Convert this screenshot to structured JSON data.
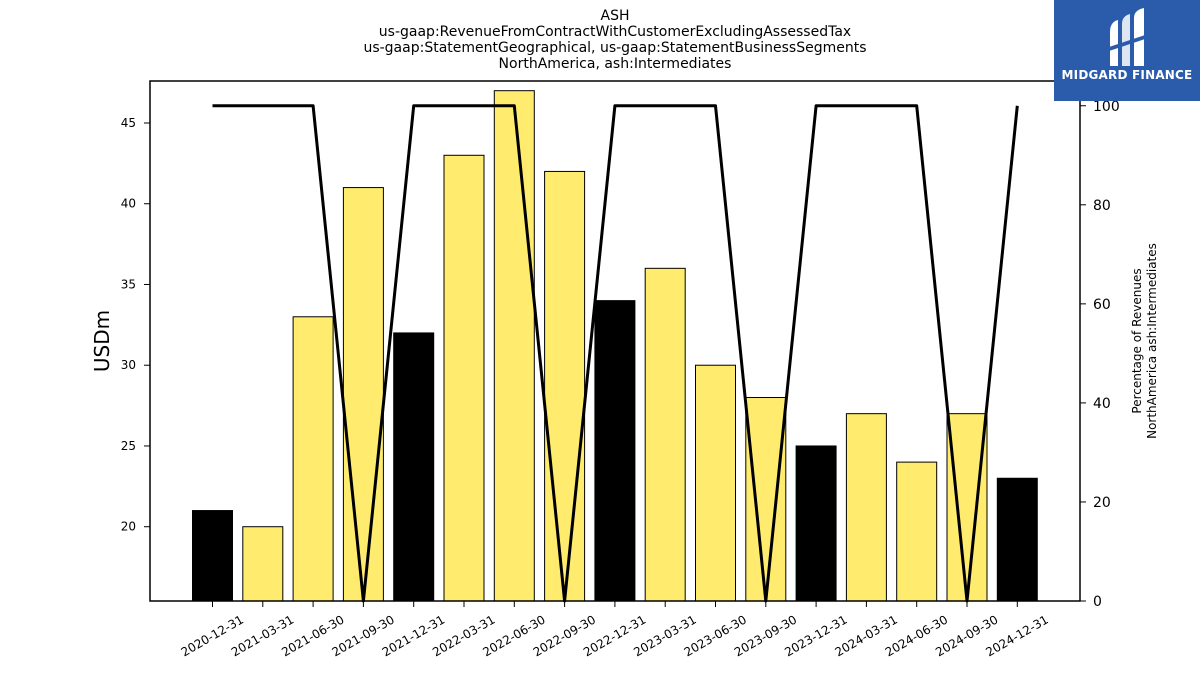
{
  "chart_data": {
    "type": "bar",
    "title_lines": [
      "ASH",
      "us-gaap:RevenueFromContractWithCustomerExcludingAssessedTax",
      "us-gaap:StatementGeographical, us-gaap:StatementBusinessSegments",
      "NorthAmerica, ash:Intermediates"
    ],
    "categories": [
      "2020-12-31",
      "2021-03-31",
      "2021-06-30",
      "2021-09-30",
      "2021-12-31",
      "2022-03-31",
      "2022-06-30",
      "2022-09-30",
      "2022-12-31",
      "2023-03-31",
      "2023-06-30",
      "2023-09-30",
      "2023-12-31",
      "2024-03-31",
      "2024-06-30",
      "2024-09-30",
      "2024-12-31"
    ],
    "series": [
      {
        "values": [
          21,
          20,
          33,
          41,
          32,
          43,
          47,
          42,
          34,
          36,
          30,
          28,
          25,
          27,
          24,
          27,
          23
        ],
        "colors": [
          "#000000",
          "#ffec6e",
          "#ffec6e",
          "#ffec6e",
          "#000000",
          "#ffec6e",
          "#ffec6e",
          "#ffec6e",
          "#000000",
          "#ffec6e",
          "#ffec6e",
          "#ffec6e",
          "#000000",
          "#ffec6e",
          "#ffec6e",
          "#ffec6e",
          "#000000"
        ],
        "axis": "left"
      },
      {
        "type": "line",
        "values": [
          100,
          100,
          100,
          0,
          100,
          100,
          100,
          0,
          100,
          100,
          100,
          0,
          100,
          100,
          100,
          0,
          100
        ],
        "color": "#000000",
        "axis": "right"
      }
    ],
    "ylabel": "USDm",
    "ylim": [
      15.4,
      47.6
    ],
    "yticks": [
      20,
      25,
      30,
      35,
      40,
      45
    ],
    "y2label_lines": [
      "Percentage of Revenues",
      "NorthAmerica ash:Intermediates"
    ],
    "y2lim": [
      0,
      105
    ],
    "y2ticks": [
      0,
      20,
      40,
      60,
      80,
      100
    ],
    "grid": false,
    "legend": "none"
  },
  "logo": {
    "text": "MIDGARD FINANCE",
    "background": "#2b5bab"
  }
}
